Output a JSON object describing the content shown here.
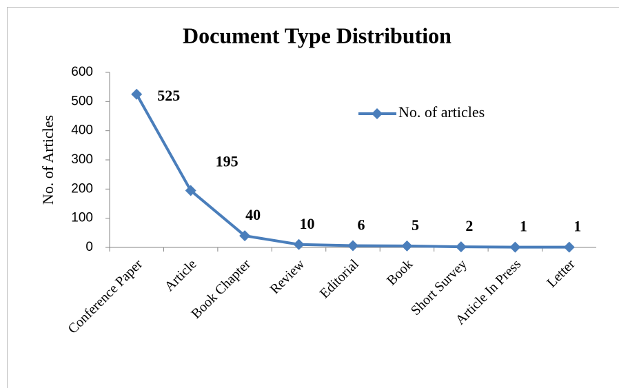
{
  "chart_data": {
    "type": "line",
    "title": "Document Type Distribution",
    "y_label": "No. of Articles",
    "categories": [
      "Conference Paper",
      "Article",
      "Book Chapter",
      "Review",
      "Editorial",
      "Book",
      "Short Survey",
      "Article In Press",
      "Letter"
    ],
    "series": [
      {
        "name": "No. of articles",
        "color": "#4a7ebb",
        "values": [
          525,
          195,
          40,
          10,
          6,
          5,
          2,
          1,
          1
        ]
      }
    ],
    "ylim": [
      0,
      600
    ],
    "yticks": [
      0,
      100,
      200,
      300,
      400,
      500,
      600
    ],
    "grid": false,
    "legend": "upper right",
    "data_labels": true
  }
}
